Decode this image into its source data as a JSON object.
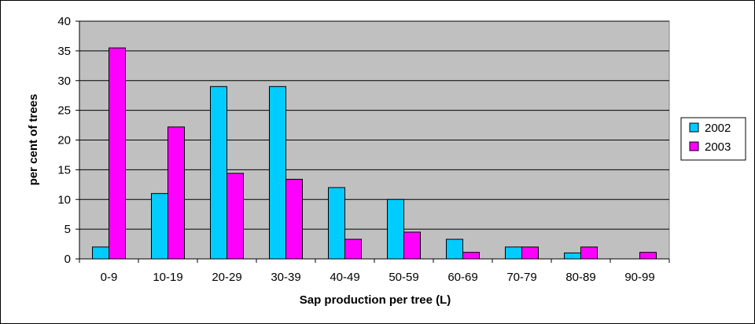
{
  "chart_data": {
    "type": "bar",
    "title": "",
    "xlabel": "Sap production per tree (L)",
    "ylabel": "per cent of trees",
    "categories": [
      "0-9",
      "10-19",
      "20-29",
      "30-39",
      "40-49",
      "50-59",
      "60-69",
      "70-79",
      "80-89",
      "90-99"
    ],
    "series": [
      {
        "name": "2002",
        "color": "#00CCFF",
        "values": [
          2,
          11,
          29,
          29,
          12,
          10,
          3.3,
          2,
          1,
          0
        ]
      },
      {
        "name": "2003",
        "color": "#FF00FF",
        "values": [
          35.5,
          22.2,
          14.4,
          13.4,
          3.3,
          4.5,
          1.1,
          2,
          2,
          1.1
        ]
      }
    ],
    "ylim": [
      0,
      40
    ],
    "yticks": [
      0,
      5,
      10,
      15,
      20,
      25,
      30,
      35,
      40
    ],
    "grid": true,
    "legend_position": "right",
    "plot_background": "#C0C0C0"
  }
}
